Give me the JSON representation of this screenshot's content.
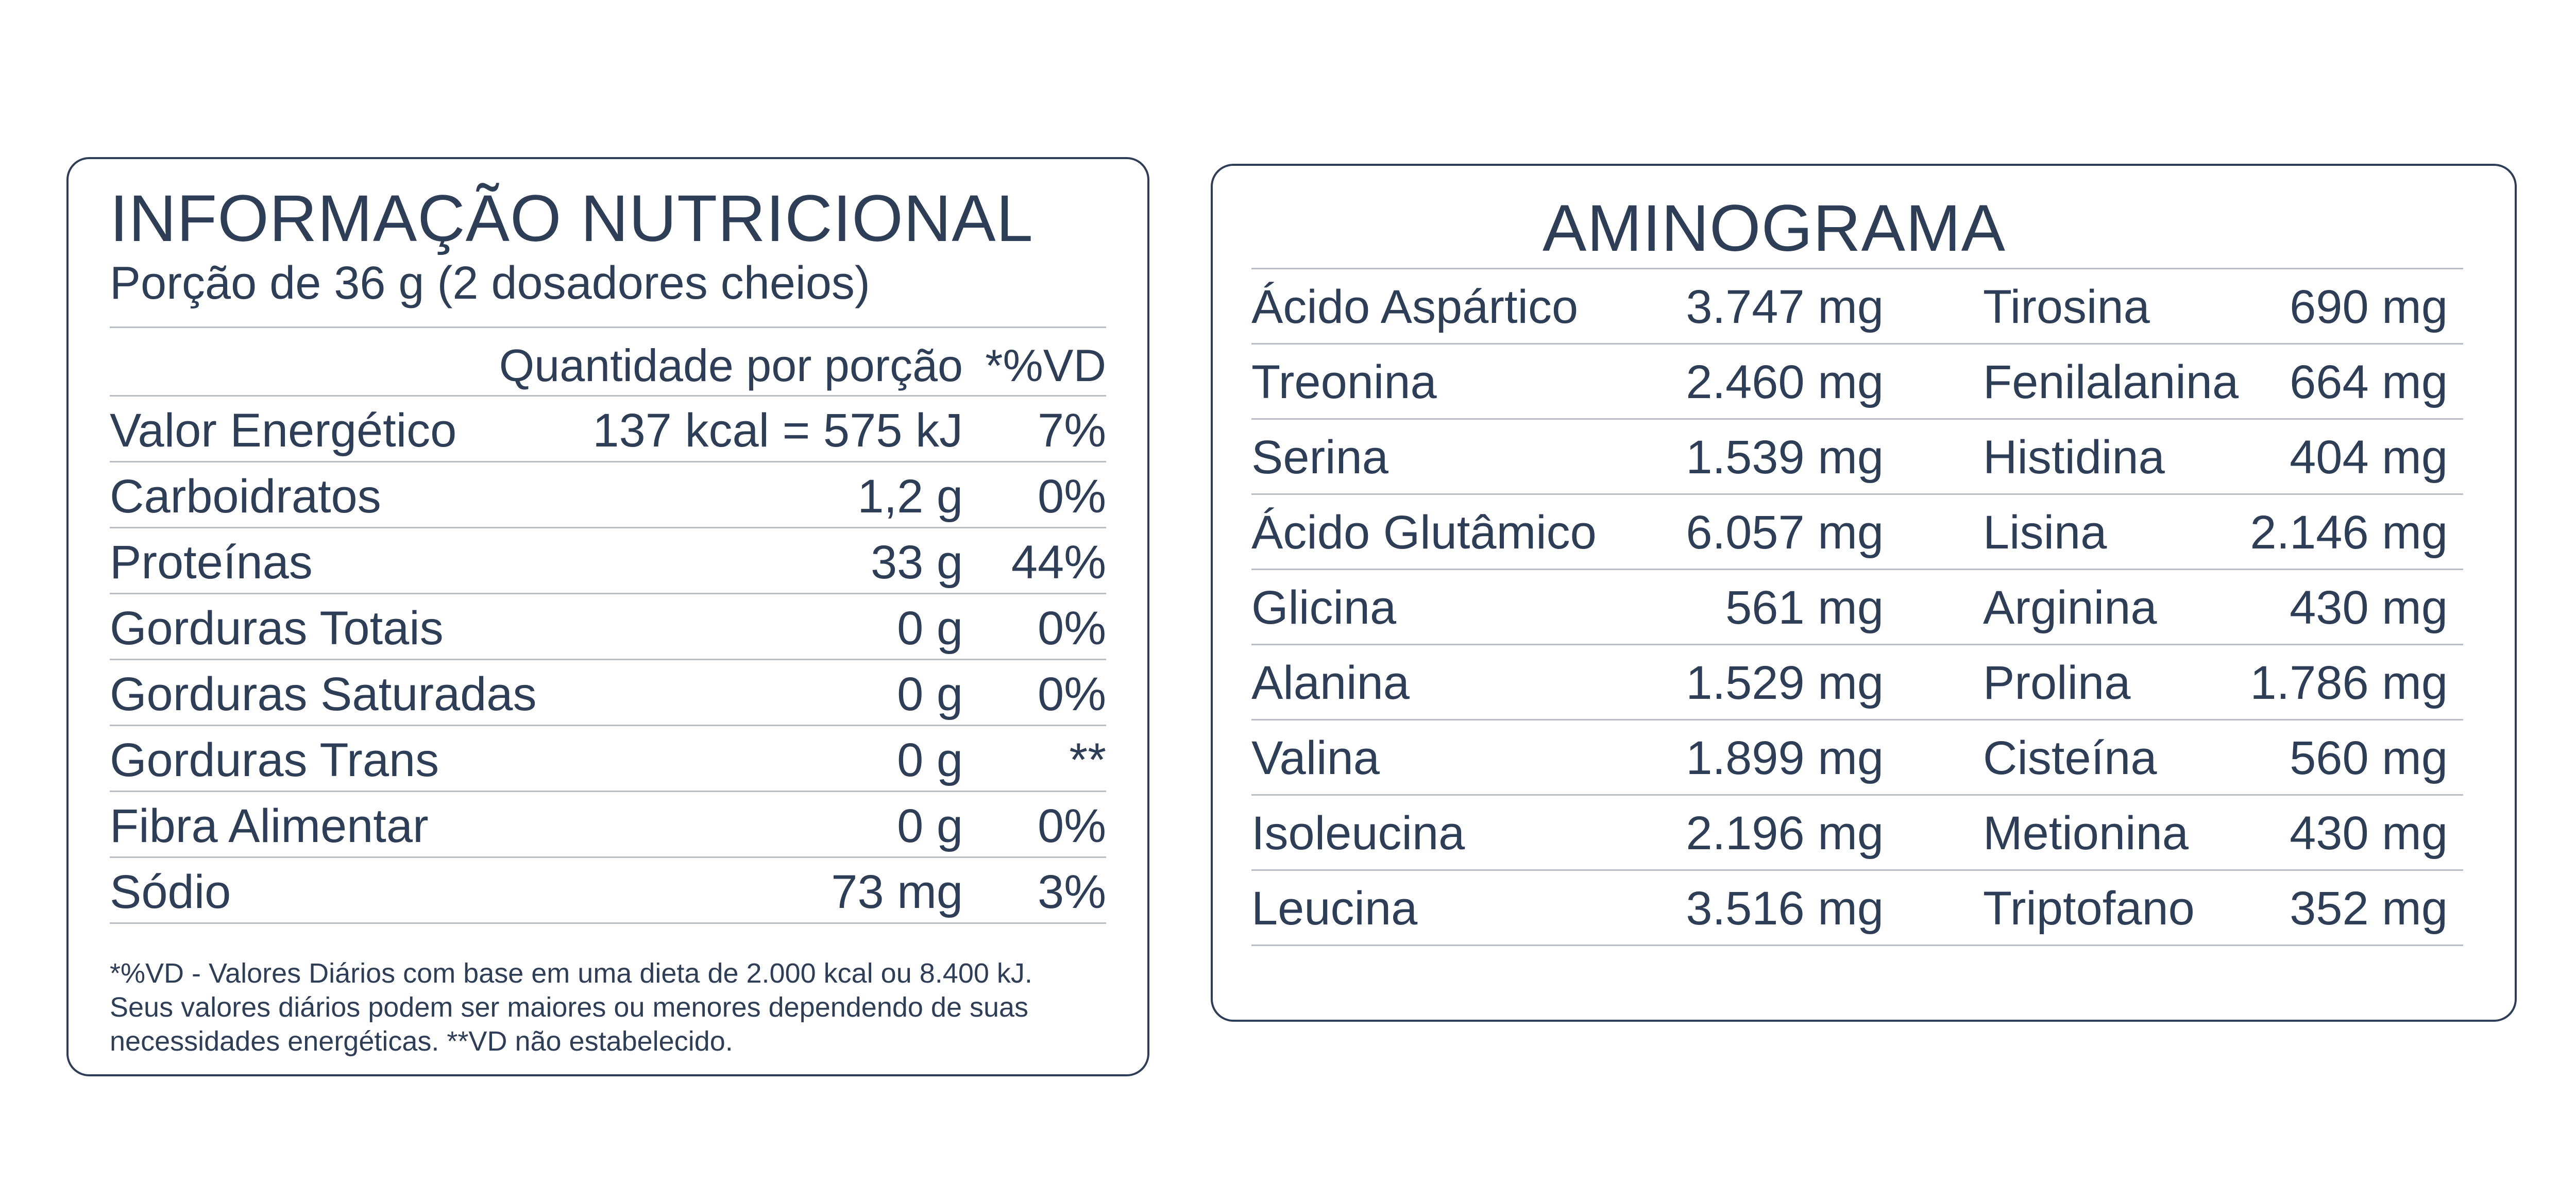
{
  "nutrition": {
    "title": "INFORMAÇÃO NUTRICIONAL",
    "serving": "Porção de 36 g (2 dosadores cheios)",
    "header_amount": "Quantidade por porção",
    "header_vd": "*%VD",
    "rows": [
      {
        "label": "Valor Energético",
        "amount": "137 kcal = 575 kJ",
        "vd": "7%"
      },
      {
        "label": "Carboidratos",
        "amount": "1,2 g",
        "vd": "0%"
      },
      {
        "label": "Proteínas",
        "amount": "33 g",
        "vd": "44%"
      },
      {
        "label": "Gorduras Totais",
        "amount": "0 g",
        "vd": "0%"
      },
      {
        "label": "Gorduras Saturadas",
        "amount": "0 g",
        "vd": "0%"
      },
      {
        "label": "Gorduras Trans",
        "amount": "0 g",
        "vd": "**"
      },
      {
        "label": "Fibra Alimentar",
        "amount": "0 g",
        "vd": "0%"
      },
      {
        "label": "Sódio",
        "amount": "73 mg",
        "vd": "3%"
      }
    ],
    "footnote": "*%VD - Valores Diários com base em uma dieta de 2.000 kcal ou 8.400 kJ. Seus valores diários podem ser maiores ou menores dependendo de suas necessidades energéticas. **VD não estabelecido."
  },
  "aminogram": {
    "title": "AMINOGRAMA",
    "left": [
      {
        "name": "Ácido Aspártico",
        "value": "3.747 mg"
      },
      {
        "name": "Treonina",
        "value": "2.460 mg"
      },
      {
        "name": "Serina",
        "value": "1.539 mg"
      },
      {
        "name": "Ácido Glutâmico",
        "value": "6.057 mg"
      },
      {
        "name": "Glicina",
        "value": "561 mg"
      },
      {
        "name": "Alanina",
        "value": "1.529 mg"
      },
      {
        "name": "Valina",
        "value": "1.899 mg"
      },
      {
        "name": "Isoleucina",
        "value": "2.196 mg"
      },
      {
        "name": "Leucina",
        "value": "3.516 mg"
      }
    ],
    "right": [
      {
        "name": "Tirosina",
        "value": "690 mg"
      },
      {
        "name": "Fenilalanina",
        "value": "664 mg"
      },
      {
        "name": "Histidina",
        "value": "404 mg"
      },
      {
        "name": "Lisina",
        "value": "2.146 mg"
      },
      {
        "name": "Arginina",
        "value": "430 mg"
      },
      {
        "name": "Prolina",
        "value": "1.786 mg"
      },
      {
        "name": "Cisteína",
        "value": "560 mg"
      },
      {
        "name": "Metionina",
        "value": "430 mg"
      },
      {
        "name": "Triptofano",
        "value": "352 mg"
      }
    ]
  }
}
